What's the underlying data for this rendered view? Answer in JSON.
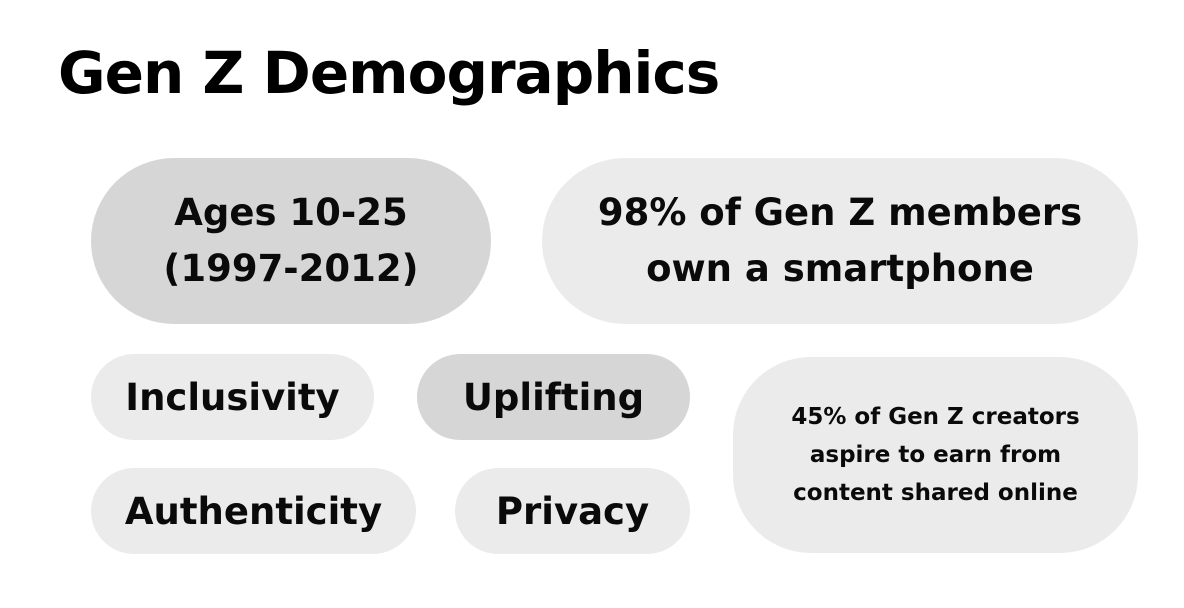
{
  "title": "Gen Z Demographics",
  "pills": {
    "ages": {
      "line1": "Ages 10-25",
      "line2": "(1997-2012)"
    },
    "smartphone": {
      "line1": "98% of Gen Z members",
      "line2": "own a smartphone"
    },
    "inclusivity": "Inclusivity",
    "uplifting": "Uplifting",
    "authenticity": "Authenticity",
    "privacy": "Privacy",
    "creators": {
      "line1": "45% of Gen Z creators",
      "line2": "aspire to earn from",
      "line3": "content shared online"
    }
  },
  "colors": {
    "dark_pill": "#d6d6d6",
    "light_pill": "#ebebeb",
    "text": "#000000",
    "background": "#ffffff"
  }
}
